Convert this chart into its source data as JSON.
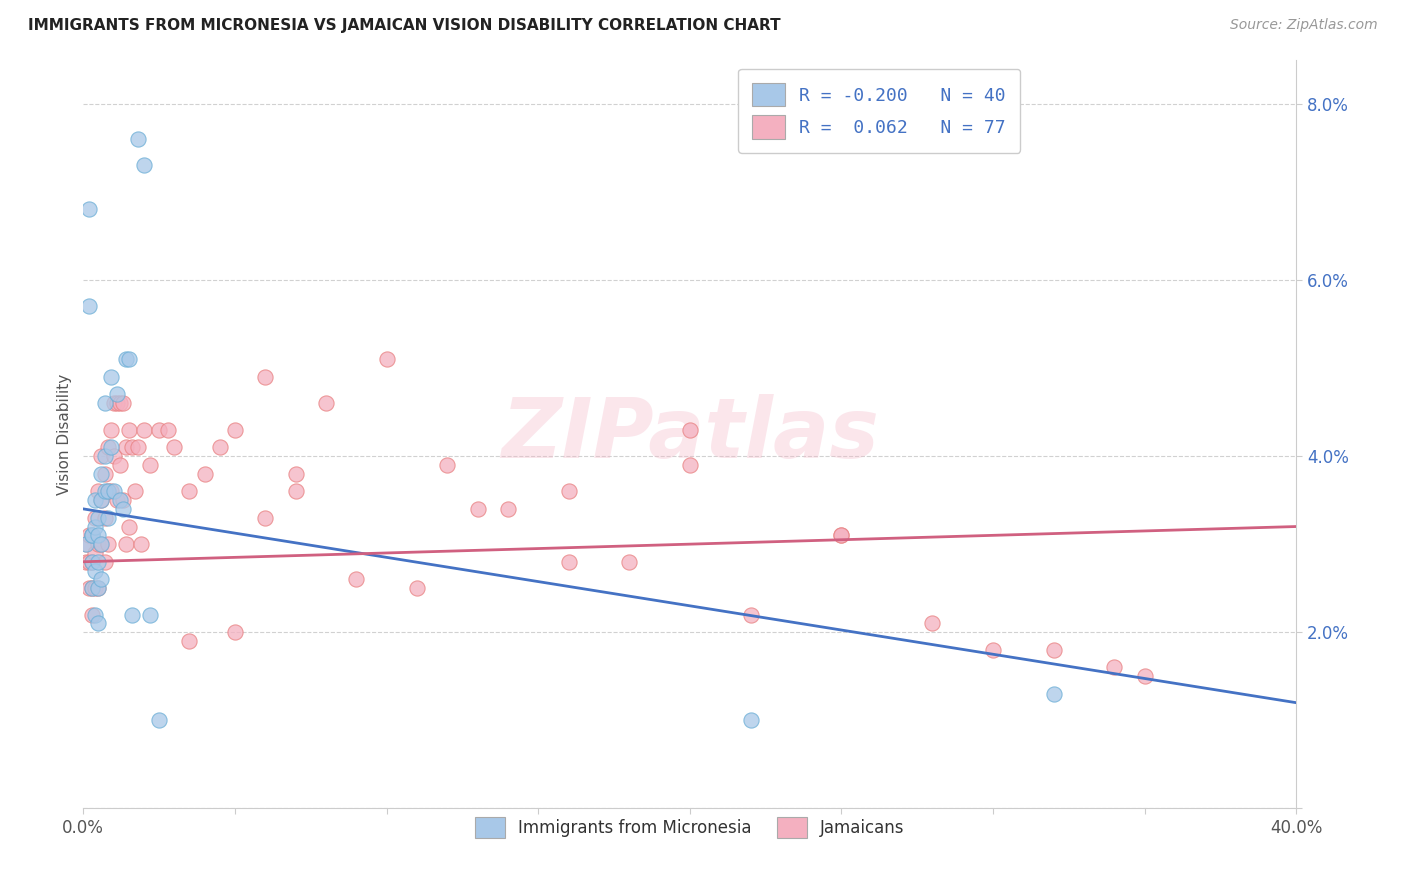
{
  "title": "IMMIGRANTS FROM MICRONESIA VS JAMAICAN VISION DISABILITY CORRELATION CHART",
  "source": "Source: ZipAtlas.com",
  "ylabel": "Vision Disability",
  "xlim": [
    0.0,
    0.4
  ],
  "ylim": [
    0.0,
    0.085
  ],
  "ytick_vals": [
    0.0,
    0.02,
    0.04,
    0.06,
    0.08
  ],
  "ytick_labels": [
    "",
    "2.0%",
    "4.0%",
    "6.0%",
    "8.0%"
  ],
  "xtick_vals": [
    0.0,
    0.05,
    0.1,
    0.15,
    0.2,
    0.25,
    0.3,
    0.35,
    0.4
  ],
  "xtick_labels": [
    "0.0%",
    "",
    "",
    "",
    "",
    "",
    "",
    "",
    "40.0%"
  ],
  "legend_label_R_mic": "R = -0.200",
  "legend_label_N_mic": "N = 40",
  "legend_label_R_jam": "R =  0.062",
  "legend_label_N_jam": "N = 77",
  "micronesia_face_color": "#a8c8e8",
  "micronesia_edge_color": "#6aaed6",
  "jamaican_face_color": "#f4b0c0",
  "jamaican_edge_color": "#e88080",
  "micronesia_line_color": "#4472c4",
  "jamaican_line_color": "#d06080",
  "watermark": "ZIPatlas",
  "mic_line_x0": 0.0,
  "mic_line_y0": 0.034,
  "mic_line_x1": 0.4,
  "mic_line_y1": 0.012,
  "jam_line_x0": 0.0,
  "jam_line_y0": 0.028,
  "jam_line_x1": 0.4,
  "jam_line_y1": 0.032,
  "micronesia_x": [
    0.001,
    0.002,
    0.002,
    0.003,
    0.003,
    0.003,
    0.003,
    0.004,
    0.004,
    0.004,
    0.004,
    0.005,
    0.005,
    0.005,
    0.005,
    0.005,
    0.006,
    0.006,
    0.006,
    0.006,
    0.007,
    0.007,
    0.007,
    0.008,
    0.008,
    0.009,
    0.009,
    0.01,
    0.011,
    0.012,
    0.013,
    0.014,
    0.015,
    0.016,
    0.018,
    0.02,
    0.022,
    0.025,
    0.22,
    0.32
  ],
  "micronesia_y": [
    0.03,
    0.068,
    0.057,
    0.031,
    0.031,
    0.028,
    0.025,
    0.035,
    0.032,
    0.027,
    0.022,
    0.033,
    0.031,
    0.028,
    0.025,
    0.021,
    0.038,
    0.035,
    0.03,
    0.026,
    0.046,
    0.04,
    0.036,
    0.036,
    0.033,
    0.049,
    0.041,
    0.036,
    0.047,
    0.035,
    0.034,
    0.051,
    0.051,
    0.022,
    0.076,
    0.073,
    0.022,
    0.01,
    0.01,
    0.013
  ],
  "jamaican_x": [
    0.001,
    0.001,
    0.002,
    0.002,
    0.002,
    0.003,
    0.003,
    0.003,
    0.003,
    0.004,
    0.004,
    0.004,
    0.005,
    0.005,
    0.005,
    0.006,
    0.006,
    0.006,
    0.007,
    0.007,
    0.007,
    0.008,
    0.008,
    0.008,
    0.009,
    0.009,
    0.01,
    0.01,
    0.011,
    0.011,
    0.012,
    0.012,
    0.013,
    0.013,
    0.014,
    0.014,
    0.015,
    0.015,
    0.016,
    0.017,
    0.018,
    0.019,
    0.02,
    0.022,
    0.025,
    0.028,
    0.03,
    0.035,
    0.04,
    0.045,
    0.05,
    0.06,
    0.07,
    0.08,
    0.09,
    0.1,
    0.12,
    0.14,
    0.16,
    0.18,
    0.2,
    0.22,
    0.25,
    0.28,
    0.3,
    0.32,
    0.34,
    0.35,
    0.2,
    0.25,
    0.16,
    0.13,
    0.11,
    0.07,
    0.06,
    0.05,
    0.035
  ],
  "jamaican_y": [
    0.03,
    0.028,
    0.031,
    0.028,
    0.025,
    0.031,
    0.028,
    0.025,
    0.022,
    0.033,
    0.029,
    0.025,
    0.036,
    0.03,
    0.025,
    0.04,
    0.035,
    0.03,
    0.038,
    0.033,
    0.028,
    0.041,
    0.036,
    0.03,
    0.043,
    0.036,
    0.046,
    0.04,
    0.046,
    0.035,
    0.046,
    0.039,
    0.046,
    0.035,
    0.041,
    0.03,
    0.043,
    0.032,
    0.041,
    0.036,
    0.041,
    0.03,
    0.043,
    0.039,
    0.043,
    0.043,
    0.041,
    0.036,
    0.038,
    0.041,
    0.043,
    0.049,
    0.036,
    0.046,
    0.026,
    0.051,
    0.039,
    0.034,
    0.036,
    0.028,
    0.039,
    0.022,
    0.031,
    0.021,
    0.018,
    0.018,
    0.016,
    0.015,
    0.043,
    0.031,
    0.028,
    0.034,
    0.025,
    0.038,
    0.033,
    0.02,
    0.019
  ]
}
